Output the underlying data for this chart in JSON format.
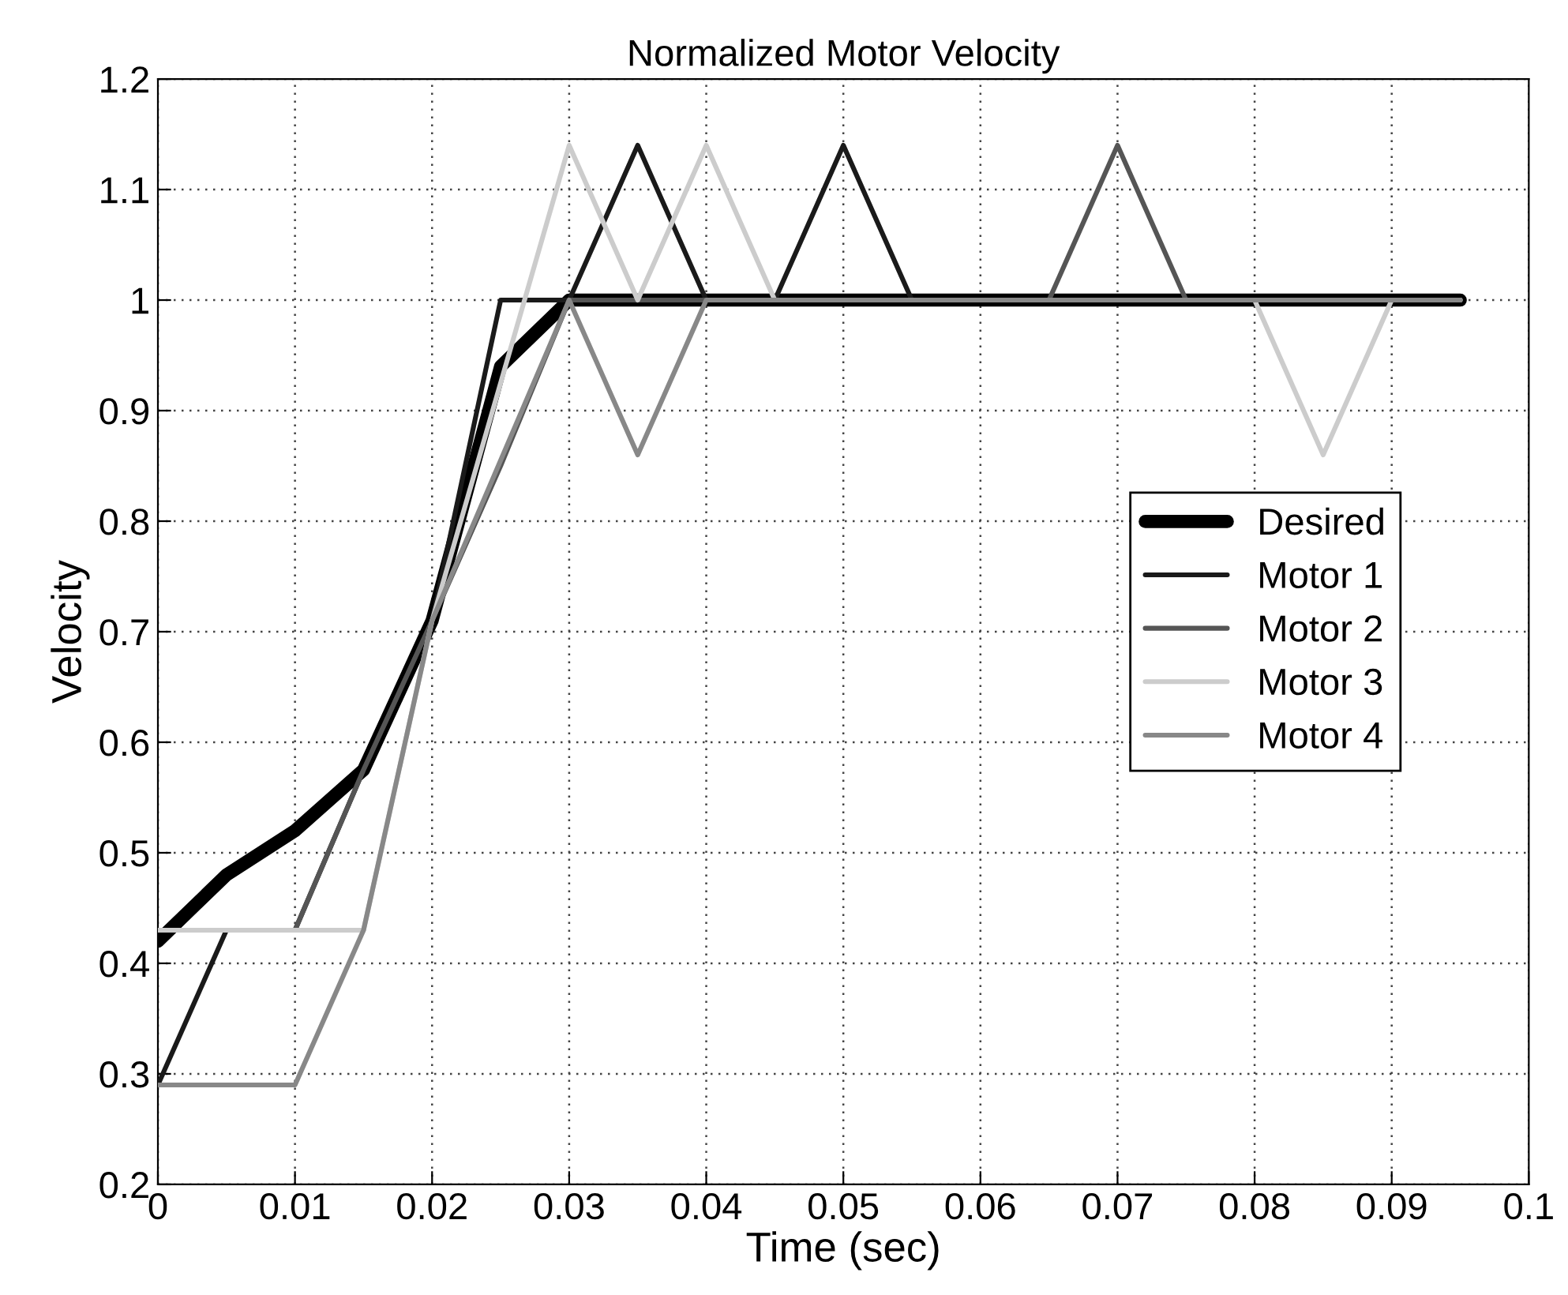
{
  "chart_data": {
    "type": "line",
    "title": "Normalized Motor Velocity",
    "xlabel": "Time (sec)",
    "ylabel": "Velocity",
    "xlim": [
      0,
      0.1
    ],
    "ylim": [
      0.2,
      1.2
    ],
    "xticks": [
      0,
      0.01,
      0.02,
      0.03,
      0.04,
      0.05,
      0.06,
      0.07,
      0.08,
      0.09,
      0.1
    ],
    "yticks": [
      0.2,
      0.3,
      0.4,
      0.5,
      0.6,
      0.7,
      0.8,
      0.9,
      1,
      1.1,
      1.2
    ],
    "grid": true,
    "legend": "right",
    "marker": "none",
    "series": [
      {
        "name": "Desired",
        "color": "#000000",
        "x": [
          0,
          0.005,
          0.01,
          0.015,
          0.02,
          0.025,
          0.03,
          0.095
        ],
        "values": [
          0.42,
          0.48,
          0.52,
          0.575,
          0.71,
          0.94,
          1.0,
          1.0
        ]
      },
      {
        "name": "Motor 1",
        "color": "#1a1a1a",
        "x": [
          0,
          0.005,
          0.01,
          0.015,
          0.02,
          0.025,
          0.03,
          0.035,
          0.04,
          0.045,
          0.05,
          0.055,
          0.095
        ],
        "values": [
          0.29,
          0.43,
          0.43,
          0.575,
          0.71,
          1.0,
          1.0,
          1.14,
          1.0,
          1.0,
          1.14,
          1.0,
          1.0
        ]
      },
      {
        "name": "Motor 2",
        "color": "#555555",
        "x": [
          0,
          0.01,
          0.015,
          0.02,
          0.025,
          0.03,
          0.065,
          0.07,
          0.075,
          0.095
        ],
        "values": [
          0.43,
          0.43,
          0.575,
          0.71,
          0.85,
          1.0,
          1.0,
          1.14,
          1.0,
          1.0
        ]
      },
      {
        "name": "Motor 3",
        "color": "#cccccc",
        "x": [
          0,
          0.015,
          0.02,
          0.03,
          0.035,
          0.04,
          0.045,
          0.08,
          0.085,
          0.09,
          0.095
        ],
        "values": [
          0.43,
          0.43,
          0.71,
          1.14,
          1.0,
          1.14,
          1.0,
          1.0,
          0.86,
          1.0,
          1.0
        ]
      },
      {
        "name": "Motor 4",
        "color": "#888888",
        "x": [
          0,
          0.01,
          0.015,
          0.02,
          0.03,
          0.035,
          0.04,
          0.095
        ],
        "values": [
          0.29,
          0.29,
          0.43,
          0.71,
          1.0,
          0.86,
          1.0,
          1.0
        ]
      }
    ]
  }
}
